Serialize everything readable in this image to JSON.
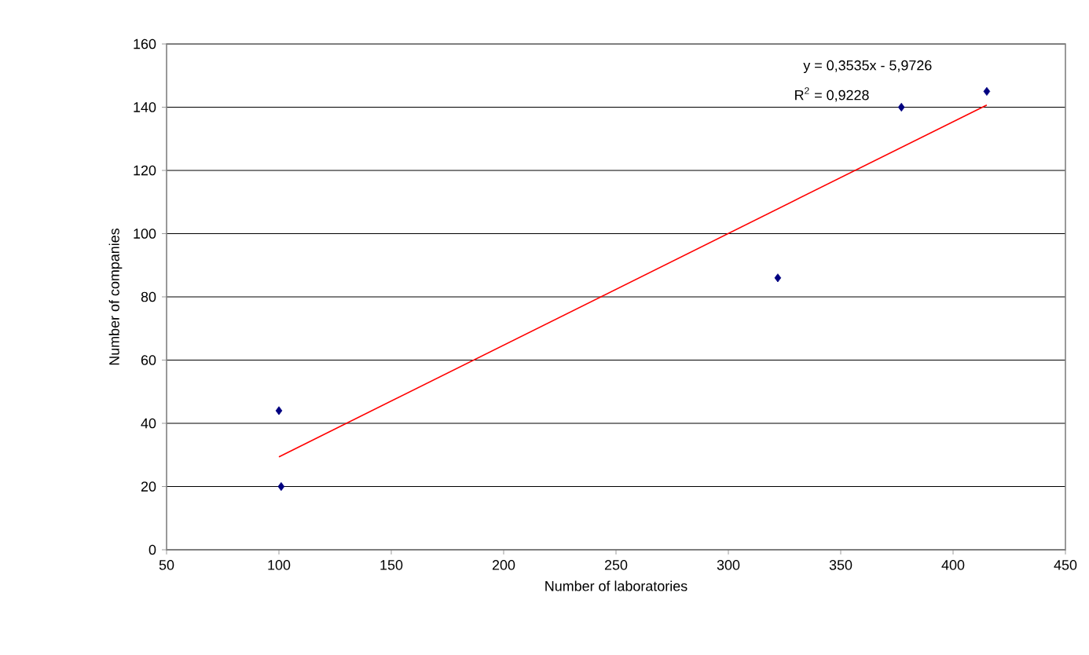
{
  "chart_data": {
    "type": "scatter",
    "xlabel": "Number of laboratories",
    "ylabel": "Number of companies",
    "series": [
      {
        "color": "#000080",
        "marker": "diamond",
        "x": [
          100,
          101,
          322,
          377,
          415
        ],
        "values": [
          44,
          20,
          86,
          140,
          145
        ]
      },
      {
        "type": "line",
        "color": "#ff0000",
        "marker": "none",
        "x": [
          100,
          415
        ],
        "values": [
          29.4,
          140.7
        ]
      }
    ],
    "annotations": [
      "y = 0,3535x - 5,9726",
      "R$^{2}$ = 0,9228"
    ],
    "xlim": [
      50,
      450
    ],
    "xticks": [
      50,
      100,
      150,
      200,
      250,
      300,
      350,
      400,
      450
    ],
    "ylim": [
      0,
      160
    ],
    "yticks": [
      0,
      20,
      40,
      60,
      80,
      100,
      120,
      140,
      160
    ],
    "grid": "y"
  }
}
